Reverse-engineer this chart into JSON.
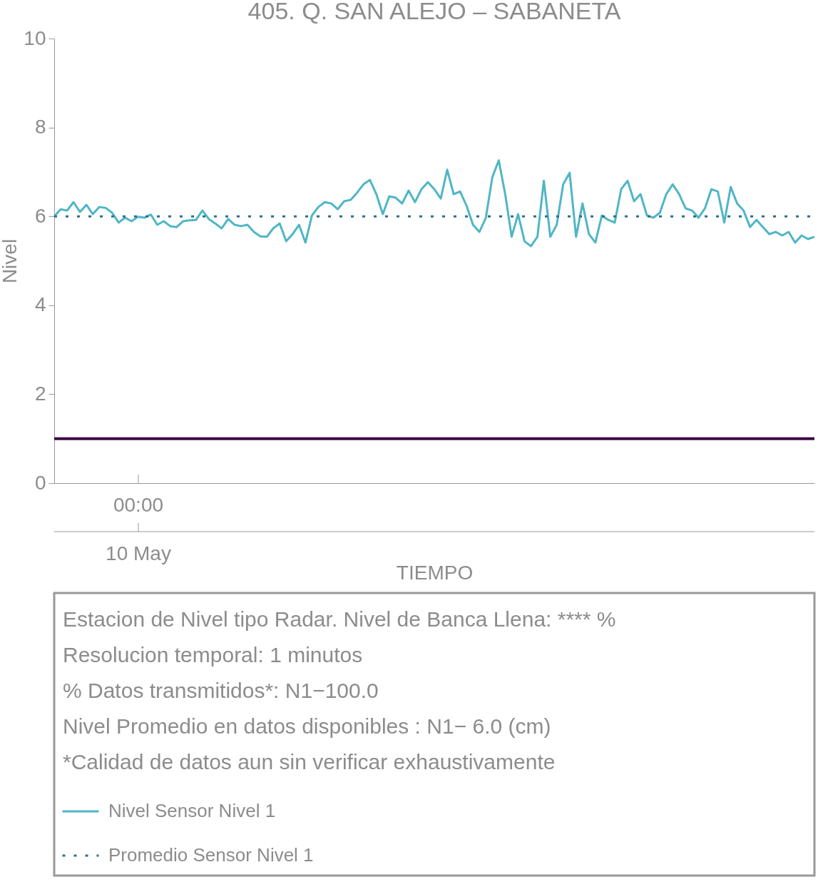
{
  "chart_data": {
    "type": "line",
    "title": "405. Q. SAN ALEJO – SABANETA",
    "xlabel": "TIEMPO",
    "ylabel": "Nivel",
    "categories": [
      null,
      null,
      null,
      null,
      null,
      null,
      null,
      null,
      null,
      null,
      null,
      null,
      null,
      null,
      null,
      null,
      null,
      null,
      null,
      null,
      null,
      null,
      null,
      null,
      null,
      null,
      null,
      null,
      null,
      null,
      null,
      null,
      null,
      null,
      null,
      null,
      null,
      null,
      null,
      null,
      null,
      null,
      null,
      null,
      null,
      null,
      null,
      null,
      null,
      null,
      null,
      null,
      null,
      null,
      null,
      null,
      null,
      null,
      null,
      null,
      null,
      null,
      null,
      null,
      null,
      null,
      null,
      null,
      null,
      null,
      null,
      null,
      null,
      null,
      null,
      null,
      null,
      null,
      null,
      null,
      null,
      null,
      null,
      null,
      null,
      null,
      null,
      null,
      null,
      null,
      null,
      null,
      null,
      null,
      null,
      null,
      null,
      null,
      null,
      null,
      null,
      null,
      null,
      null,
      null,
      null,
      null,
      null,
      null,
      null,
      null,
      null,
      null,
      null,
      null,
      null,
      null,
      null,
      null
    ],
    "series": [
      {
        "name": "Nivel Sensor Nivel 1",
        "color": "#4fb6c6",
        "line_style": "solid",
        "values": [
          6.0,
          6.16,
          6.13,
          6.32,
          6.1,
          6.26,
          6.05,
          6.21,
          6.19,
          6.08,
          5.86,
          5.97,
          5.89,
          5.99,
          5.97,
          6.04,
          5.81,
          5.89,
          5.78,
          5.76,
          5.89,
          5.91,
          5.92,
          6.13,
          5.94,
          5.84,
          5.73,
          5.94,
          5.81,
          5.78,
          5.81,
          5.65,
          5.55,
          5.54,
          5.73,
          5.84,
          5.44,
          5.6,
          5.81,
          5.41,
          6.02,
          6.21,
          6.32,
          6.29,
          6.16,
          6.34,
          6.37,
          6.53,
          6.72,
          6.82,
          6.5,
          6.05,
          6.45,
          6.42,
          6.29,
          6.58,
          6.32,
          6.61,
          6.77,
          6.61,
          6.4,
          7.05,
          6.5,
          6.56,
          6.24,
          5.81,
          5.65,
          5.97,
          6.88,
          7.26,
          6.5,
          5.54,
          6.05,
          5.44,
          5.33,
          5.54,
          6.8,
          5.54,
          5.81,
          6.72,
          6.98,
          5.54,
          6.29,
          5.6,
          5.41,
          6.02,
          5.92,
          5.86,
          6.61,
          6.8,
          6.34,
          6.5,
          6.02,
          5.97,
          6.08,
          6.5,
          6.72,
          6.5,
          6.18,
          6.13,
          5.97,
          6.18,
          6.61,
          6.56,
          5.86,
          6.66,
          6.29,
          6.13,
          5.76,
          5.92,
          5.76,
          5.6,
          5.65,
          5.57,
          5.65,
          5.41,
          5.57,
          5.49,
          5.54
        ]
      },
      {
        "name": "Promedio Sensor Nivel 1",
        "color": "#2f6f8c",
        "line_style": "dotted",
        "values": [
          6.0,
          6.0,
          6.0,
          6.0,
          6.0,
          6.0,
          6.0,
          6.0,
          6.0,
          6.0,
          6.0,
          6.0,
          6.0,
          6.0,
          6.0,
          6.0,
          6.0,
          6.0,
          6.0,
          6.0,
          6.0,
          6.0,
          6.0,
          6.0,
          6.0,
          6.0,
          6.0,
          6.0,
          6.0,
          6.0,
          6.0,
          6.0,
          6.0,
          6.0,
          6.0,
          6.0,
          6.0,
          6.0,
          6.0,
          6.0,
          6.0,
          6.0,
          6.0,
          6.0,
          6.0,
          6.0,
          6.0,
          6.0,
          6.0,
          6.0,
          6.0,
          6.0,
          6.0,
          6.0,
          6.0,
          6.0,
          6.0,
          6.0,
          6.0,
          6.0,
          6.0,
          6.0,
          6.0,
          6.0,
          6.0,
          6.0,
          6.0,
          6.0,
          6.0,
          6.0,
          6.0,
          6.0,
          6.0,
          6.0,
          6.0,
          6.0,
          6.0,
          6.0,
          6.0,
          6.0,
          6.0,
          6.0,
          6.0,
          6.0,
          6.0,
          6.0,
          6.0,
          6.0,
          6.0,
          6.0,
          6.0,
          6.0,
          6.0,
          6.0,
          6.0,
          6.0,
          6.0,
          6.0,
          6.0,
          6.0,
          6.0,
          6.0,
          6.0,
          6.0,
          6.0,
          6.0,
          6.0,
          6.0,
          6.0,
          6.0,
          6.0,
          6.0,
          6.0,
          6.0,
          6.0,
          6.0,
          6.0,
          6.0,
          6.0
        ]
      }
    ],
    "ylim": [
      0,
      10
    ],
    "yticks": [
      0,
      2,
      4,
      6,
      8,
      10
    ],
    "ref_lines": [
      {
        "axis": "y",
        "value": 1,
        "color": "#3b0a45"
      }
    ],
    "legend": "bottom",
    "annotations": [
      "00:00",
      "10 May",
      "Estacion de Nivel tipo Radar. Nivel de Banca Llena: **** %",
      "Resolucion temporal: 1 minutos",
      "% Datos transmitidos*: N1−100.0",
      "Nivel Promedio en datos disponibles : N1−  6.0 (cm)",
      "*Calidad de datos aun sin verificar exhaustivamente"
    ]
  }
}
